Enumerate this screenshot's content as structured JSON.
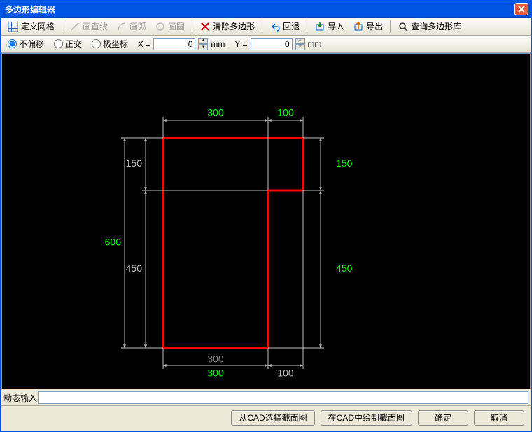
{
  "window": {
    "title": "多边形编辑器"
  },
  "toolbar": {
    "define_grid": "定义网格",
    "draw_line": "画直线",
    "draw_arc": "画弧",
    "draw_circle": "画圆",
    "clear_poly": "清除多边形",
    "undo": "回退",
    "import": "导入",
    "export": "导出",
    "query_lib": "查询多边形库"
  },
  "options": {
    "no_offset": "不偏移",
    "ortho": "正交",
    "polar": "极坐标",
    "x_label": "X =",
    "x_value": "0",
    "x_unit": "mm",
    "y_label": "Y =",
    "y_value": "0",
    "y_unit": "mm"
  },
  "drawing": {
    "canvas_bg": "#000000",
    "shape_color": "#ff0000",
    "dim_text_color": "#00ff00",
    "guide_color": "#c0c0c0",
    "shape": {
      "type": "L-polygon",
      "outer_w": 400,
      "outer_h": 600,
      "notch_w": 100,
      "notch_h": 150,
      "stroke_width": 3
    },
    "dims_top": [
      {
        "text": "300",
        "color": "#00ff00"
      },
      {
        "text": "100",
        "color": "#00ff00"
      }
    ],
    "dims_right": [
      {
        "text": "150",
        "color": "#00ff00"
      },
      {
        "text": "450",
        "color": "#00ff00"
      }
    ],
    "dims_left": [
      {
        "text": "150",
        "color": "#c0c0c0"
      },
      {
        "text": "600",
        "color": "#00ff00"
      },
      {
        "text": "450",
        "color": "#c0c0c0"
      }
    ],
    "dims_bottom": [
      {
        "text": "300",
        "color": "#00ff00"
      },
      {
        "text": "300",
        "color": "#808080"
      },
      {
        "text": "100",
        "color": "#c0c0c0"
      }
    ],
    "font_size": 14
  },
  "bottom": {
    "dyn_input_label": "动态输入"
  },
  "buttons": {
    "select_from_cad": "从CAD选择截面图",
    "draw_in_cad": "在CAD中绘制截面图",
    "ok": "确定",
    "cancel": "取消"
  }
}
